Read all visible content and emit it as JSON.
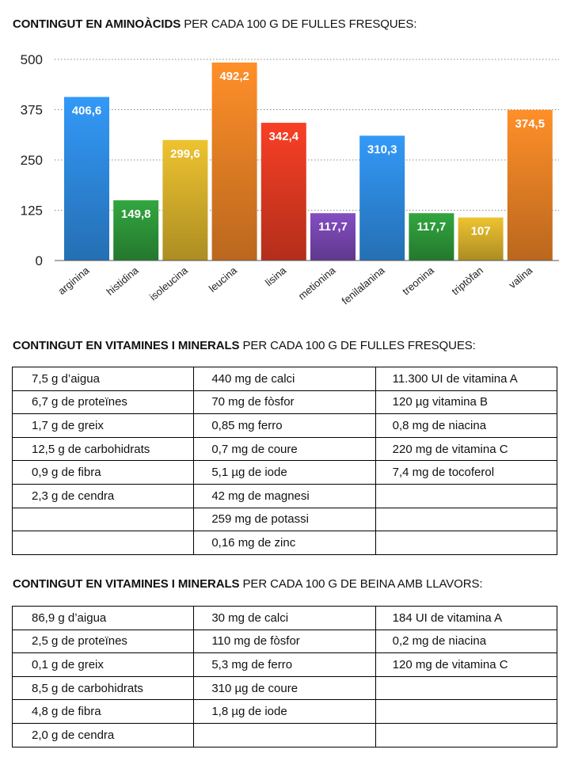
{
  "heading1": {
    "bold": "CONTINGUT EN AMINOÀCIDS",
    "rest": " PER CADA 100 G DE FULLES FRESQUES:"
  },
  "heading2": {
    "bold": "CONTINGUT EN VITAMINES I MINERALS",
    "rest": " PER CADA 100 G DE FULLES FRESQUES:"
  },
  "heading3": {
    "bold": "CONTINGUT EN VITAMINES I MINERALS",
    "rest": " PER CADA 100 G DE BEINA AMB LLAVORS:"
  },
  "chart_data": {
    "type": "bar",
    "title": "CONTINGUT EN AMINOÀCIDS PER CADA 100 G DE FULLES FRESQUES:",
    "categories": [
      "arginina",
      "histidina",
      "isoleucina",
      "leucina",
      "lisina",
      "metionina",
      "fenilalanina",
      "treonina",
      "triptòfan",
      "valina"
    ],
    "values": [
      406.6,
      149.8,
      299.6,
      492.2,
      342.4,
      117.7,
      310.3,
      117.7,
      107,
      374.5
    ],
    "value_labels": [
      "406,6",
      "149,8",
      "299,6",
      "492,2",
      "342,4",
      "117,7",
      "310,3",
      "117,7",
      "107",
      "374,5"
    ],
    "colors": [
      "#2f8ee6",
      "#2e9a3a",
      "#dcb52c",
      "#ee8426",
      "#e63b22",
      "#7a48b4",
      "#2f8ee6",
      "#2e9a3a",
      "#dcb52c",
      "#ee8426"
    ],
    "yticks": [
      0,
      125,
      250,
      375,
      500
    ],
    "ylim": [
      0,
      500
    ],
    "grid": true,
    "xlabel": "",
    "ylabel": ""
  },
  "table1": {
    "rows": [
      [
        "7,5 g d’aigua",
        "440 mg de calci",
        "11.300 UI de vitamina A"
      ],
      [
        "6,7 g de proteïnes",
        "70 mg de fòsfor",
        "120 µg vitamina B"
      ],
      [
        "1,7 g de greix",
        "0,85 mg ferro",
        "0,8 mg de niacina"
      ],
      [
        "12,5 g de carbohidrats",
        "0,7 mg de coure",
        "220 mg de vitamina C"
      ],
      [
        "0,9 g de fibra",
        "5,1 µg de iode",
        "7,4 mg de tocoferol"
      ],
      [
        "2,3 g de cendra",
        "42 mg de magnesi",
        ""
      ],
      [
        "",
        "259 mg de potassi",
        ""
      ],
      [
        "",
        "0,16 mg de zinc",
        ""
      ]
    ]
  },
  "table2": {
    "rows": [
      [
        "86,9 g d’aigua",
        "30 mg de calci",
        "184 UI de vitamina A"
      ],
      [
        "2,5 g de proteïnes",
        "110 mg de fòsfor",
        "0,2 mg de niacina"
      ],
      [
        "0,1 g de greix",
        "5,3 mg de ferro",
        "120 mg de vitamina C"
      ],
      [
        "8,5 g de carbohidrats",
        "310 µg de coure",
        ""
      ],
      [
        "4,8 g de fibra",
        "1,8 µg de iode",
        ""
      ],
      [
        "2,0 g de cendra",
        "",
        ""
      ]
    ]
  }
}
